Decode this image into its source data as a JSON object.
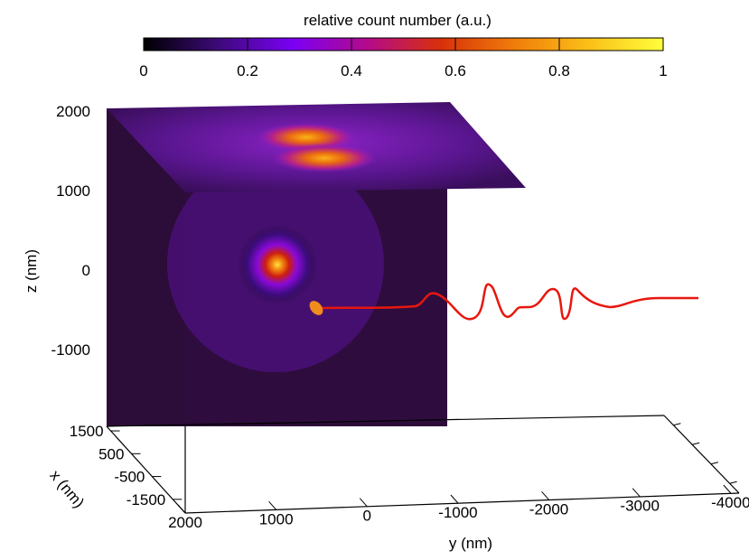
{
  "chart_data": {
    "type": "heatmap",
    "colorbar": {
      "title": "relative count number (a.u.)",
      "ticks": [
        "0",
        "0.2",
        "0.4",
        "0.6",
        "0.8",
        "1"
      ],
      "range": [
        0,
        1
      ],
      "colors": [
        "#000000",
        "#3c0a78",
        "#7a00f5",
        "#b30a8c",
        "#d8300a",
        "#f07d0a",
        "#fbc018",
        "#ffff3c"
      ]
    },
    "axes": {
      "x": {
        "label": "x (nm)",
        "ticks": [
          "1500",
          "500",
          "-500",
          "-1500"
        ],
        "range": [
          -1500,
          1500
        ]
      },
      "y": {
        "label": "y (nm)",
        "ticks": [
          "2000",
          "1000",
          "0",
          "-1000",
          "-2000",
          "-3000",
          "-4000"
        ],
        "range": [
          -4000,
          2000
        ]
      },
      "z": {
        "label": "z (nm)",
        "ticks": [
          "2000",
          "1000",
          "0",
          "-1000"
        ],
        "range": [
          -2000,
          2000
        ]
      }
    },
    "projections": [
      {
        "plane": "y-z",
        "spots": [
          {
            "y": 1000,
            "z": 0,
            "intensity": 1.0
          }
        ]
      },
      {
        "plane": "x-y",
        "spots": [
          {
            "x": 300,
            "y": 750,
            "intensity": 0.75
          },
          {
            "x": -300,
            "y": 500,
            "intensity": 0.8
          }
        ]
      }
    ],
    "trajectory": {
      "color": "#e8170e",
      "marker_color": "#f08c1e",
      "start": {
        "y": 0,
        "z": -500
      },
      "end": {
        "y": -4000,
        "z": -400
      }
    }
  }
}
